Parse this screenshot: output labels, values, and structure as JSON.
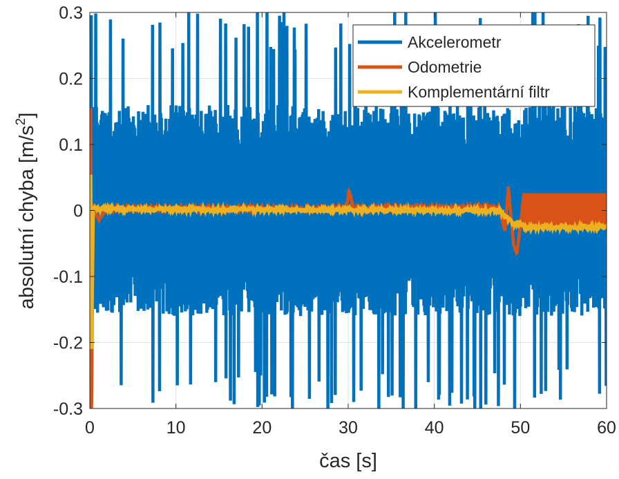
{
  "chart_data": {
    "type": "line",
    "title": "",
    "xlabel": "čas [s]",
    "ylabel": "absolutní chyba [m/s²]",
    "ylabel_parts": {
      "main": "absolutní chyba [m/s",
      "sup": "2",
      "close": "]"
    },
    "xlim": [
      0,
      60
    ],
    "ylim": [
      -0.3,
      0.3
    ],
    "xticks": [
      0,
      10,
      20,
      30,
      40,
      50,
      60
    ],
    "xtick_labels": [
      "0",
      "10",
      "20",
      "30",
      "40",
      "50",
      "60"
    ],
    "yticks": [
      -0.3,
      -0.2,
      -0.1,
      0,
      0.1,
      0.2,
      0.3
    ],
    "ytick_labels": [
      "-0.3",
      "-0.2",
      "-0.1",
      "0",
      "0.1",
      "0.2",
      "0.3"
    ],
    "grid": true,
    "legend_position": "top-right",
    "series": [
      {
        "name": "Akcelerometr",
        "color": "#0072BD",
        "description_points": [
          [
            0,
            0
          ],
          [
            60,
            0
          ]
        ],
        "noise_amplitude": 0.16,
        "peak_amplitude": 0.3
      },
      {
        "name": "Odometrie",
        "color": "#D95319",
        "points": [
          [
            0,
            0
          ],
          [
            0.1,
            0.155
          ],
          [
            0.2,
            -0.3
          ],
          [
            0.4,
            0.01
          ],
          [
            1,
            -0.015
          ],
          [
            2,
            0.003
          ],
          [
            29.8,
            0.003
          ],
          [
            30.1,
            0.03
          ],
          [
            30.6,
            0.003
          ],
          [
            47.5,
            0.005
          ],
          [
            48.2,
            -0.03
          ],
          [
            48.6,
            0.035
          ],
          [
            49.2,
            -0.05
          ],
          [
            49.6,
            -0.065
          ],
          [
            50,
            -0.02
          ],
          [
            50.4,
            0.025
          ],
          [
            60,
            0.025
          ]
        ],
        "oscillation_after": 50.4,
        "oscillation_range": [
          -0.025,
          0.026
        ]
      },
      {
        "name": "Komplementární filtr",
        "color": "#EDB120",
        "points": [
          [
            0,
            0
          ],
          [
            0.1,
            0.055
          ],
          [
            0.2,
            -0.21
          ],
          [
            0.4,
            0.005
          ],
          [
            1,
            0.002
          ],
          [
            47.5,
            0.0
          ],
          [
            48.4,
            -0.01
          ],
          [
            49.2,
            -0.02
          ],
          [
            50,
            -0.02
          ],
          [
            50.5,
            -0.025
          ],
          [
            60,
            -0.025
          ]
        ]
      }
    ]
  }
}
